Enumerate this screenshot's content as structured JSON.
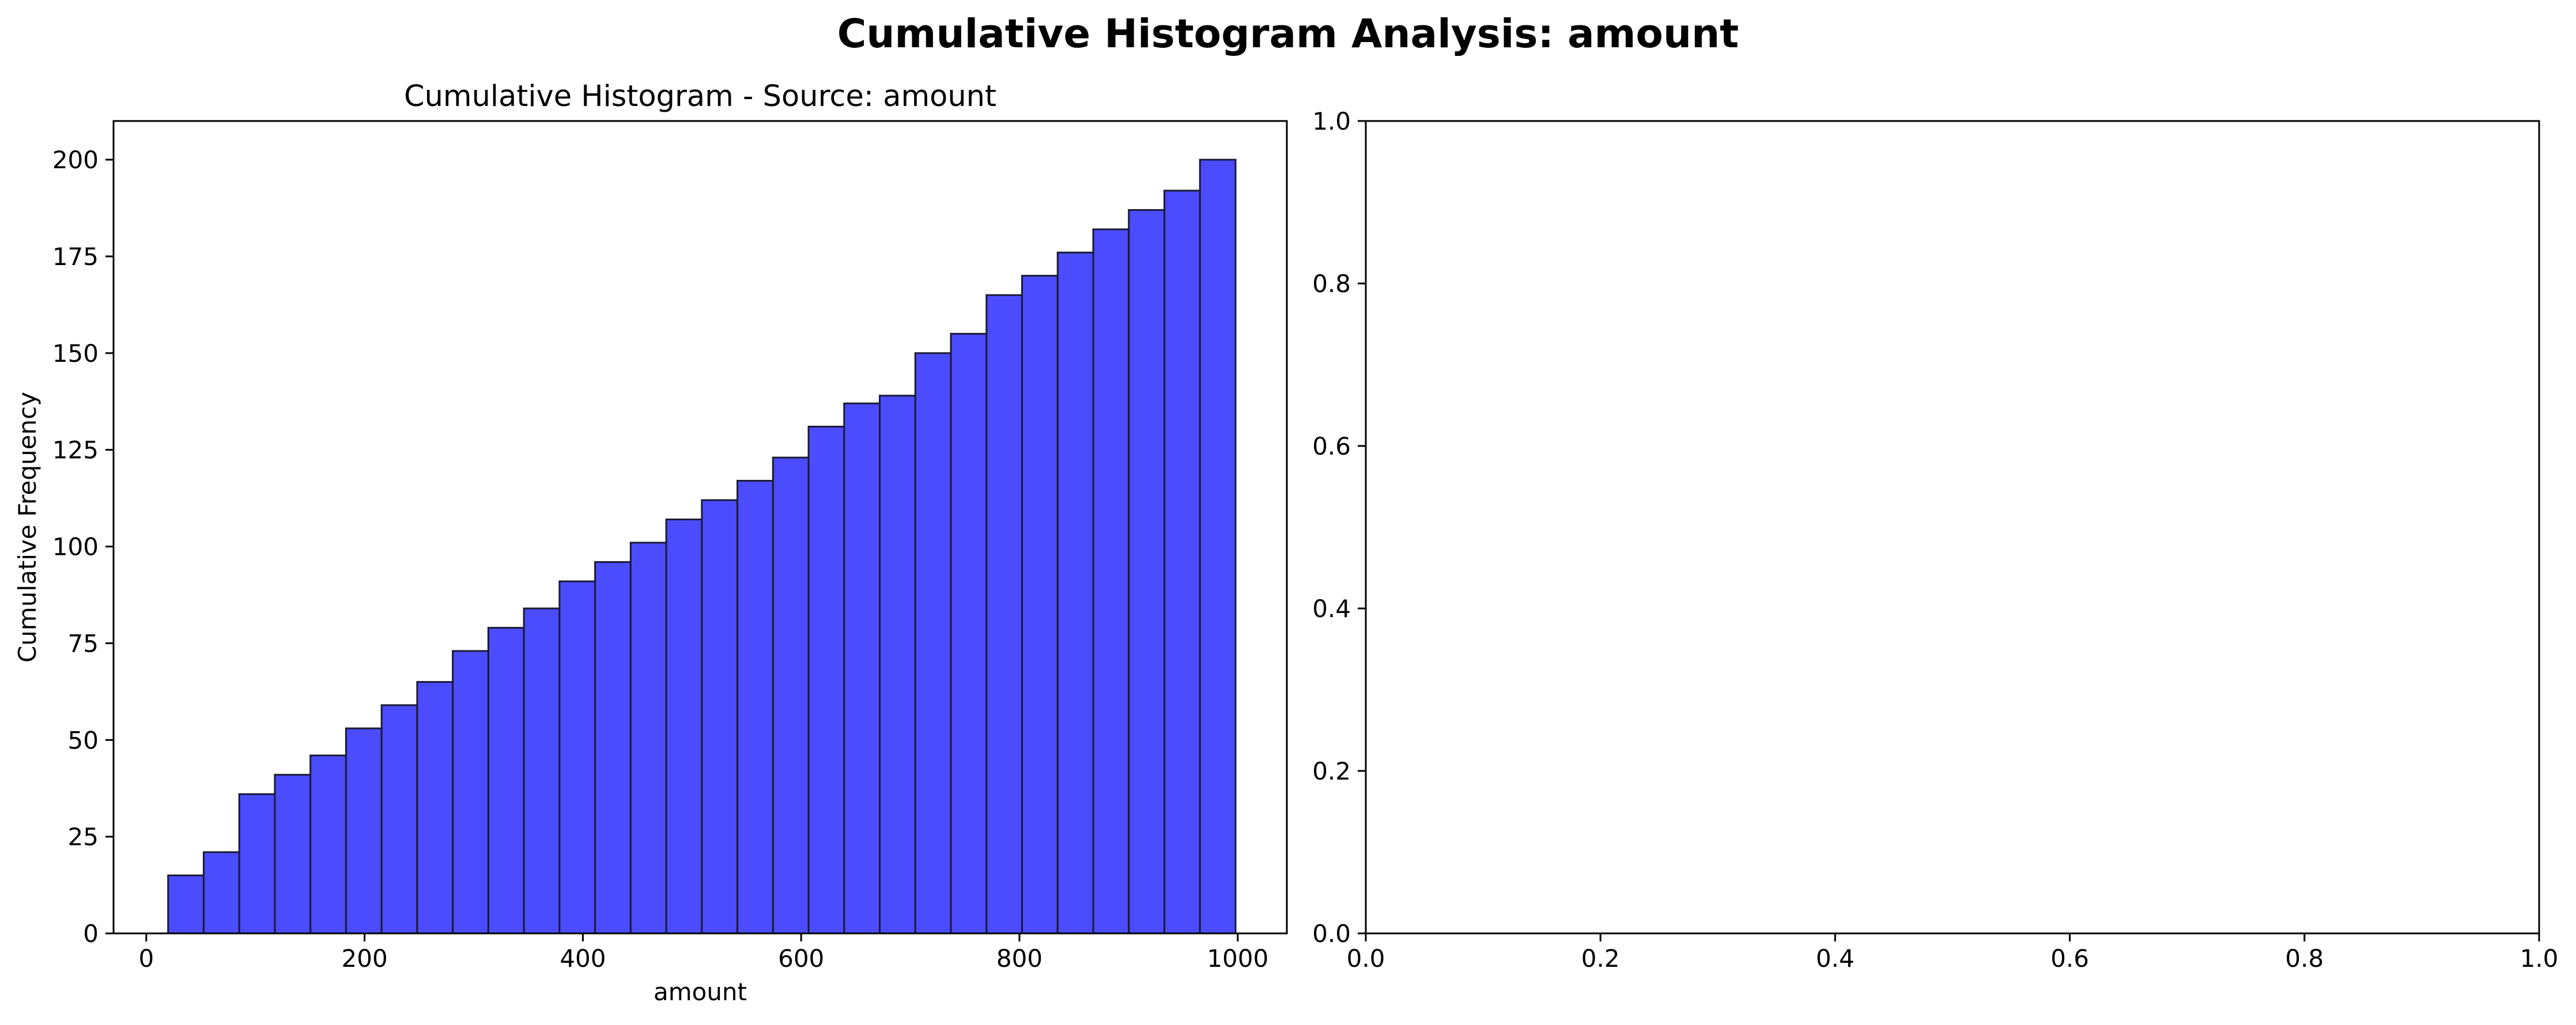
{
  "figure": {
    "suptitle": "Cumulative Histogram Analysis: amount"
  },
  "chart_data": [
    {
      "type": "bar",
      "title": "Cumulative Histogram - Source: amount",
      "xlabel": "amount",
      "ylabel": "Cumulative Frequency",
      "bar_color": "#4c4cff",
      "edge_color": "#1a1a33",
      "xlim": [
        -30,
        1045
      ],
      "ylim": [
        0,
        210
      ],
      "xticks": [
        0,
        200,
        400,
        600,
        800,
        1000
      ],
      "yticks": [
        0,
        25,
        50,
        75,
        100,
        125,
        150,
        175,
        200
      ],
      "grid": false,
      "bin_edges": [
        20,
        52.6,
        85.2,
        117.8,
        150.4,
        183,
        215.6,
        248.2,
        280.8,
        313.4,
        346,
        378.6,
        411.2,
        443.8,
        476.4,
        509,
        541.6,
        574.2,
        606.8,
        639.4,
        672,
        704.6,
        737.2,
        769.8,
        802.4,
        835,
        867.6,
        900.2,
        932.8,
        965.4,
        998
      ],
      "values": [
        15,
        21,
        36,
        41,
        46,
        53,
        59,
        65,
        73,
        79,
        84,
        91,
        96,
        101,
        107,
        112,
        117,
        123,
        131,
        137,
        139,
        150,
        155,
        165,
        170,
        176,
        182,
        187,
        192,
        200
      ]
    },
    {
      "type": "scatter",
      "title": "",
      "xlabel": "",
      "ylabel": "",
      "xlim": [
        0,
        1
      ],
      "ylim": [
        0,
        1
      ],
      "xticks": [
        0.0,
        0.2,
        0.4,
        0.6,
        0.8,
        1.0
      ],
      "yticks": [
        0.0,
        0.2,
        0.4,
        0.6,
        0.8,
        1.0
      ],
      "grid": false,
      "points": []
    }
  ]
}
